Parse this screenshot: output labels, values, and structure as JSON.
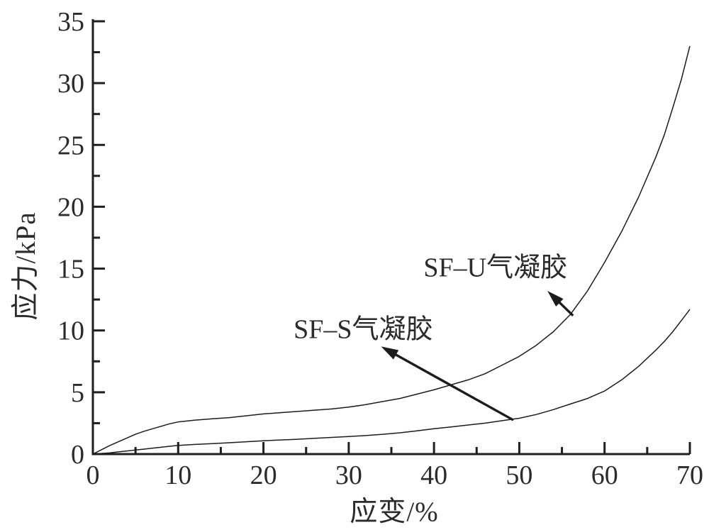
{
  "figure": {
    "background_color": "#ffffff",
    "ink_color": "#1f1f1f",
    "text_color": "#2b2b2b"
  },
  "chart_data": {
    "type": "line",
    "title": "",
    "xlabel": "应变/%",
    "ylabel": "应力/kPa",
    "xlim": [
      0,
      70
    ],
    "ylim": [
      0,
      35
    ],
    "x_major_ticks": [
      0,
      10,
      20,
      30,
      40,
      50,
      60,
      70
    ],
    "x_minor_ticks": [
      5,
      15,
      25,
      35,
      45,
      55,
      65
    ],
    "y_major_ticks": [
      0,
      5,
      10,
      15,
      20,
      25,
      30,
      35
    ],
    "y_minor_ticks": [
      2.5,
      7.5,
      12.5,
      17.5,
      22.5,
      27.5,
      32.5
    ],
    "grid": false,
    "legend_position": "none (inline arrow annotations)",
    "series": [
      {
        "name": "SF-U气凝胶",
        "x": [
          0,
          1,
          2,
          3,
          4,
          5,
          6,
          7,
          8,
          9,
          10,
          12,
          14,
          16,
          18,
          20,
          22,
          24,
          26,
          28,
          30,
          32,
          34,
          36,
          38,
          40,
          42,
          44,
          46,
          48,
          50,
          52,
          54,
          56,
          58,
          60,
          62,
          64,
          66,
          67,
          68,
          69,
          70
        ],
        "y": [
          0,
          0.35,
          0.7,
          1.0,
          1.3,
          1.6,
          1.85,
          2.05,
          2.25,
          2.45,
          2.6,
          2.75,
          2.85,
          2.95,
          3.1,
          3.25,
          3.35,
          3.45,
          3.55,
          3.65,
          3.8,
          4.0,
          4.25,
          4.5,
          4.85,
          5.2,
          5.6,
          6.0,
          6.5,
          7.2,
          7.9,
          8.8,
          9.9,
          11.3,
          13.2,
          15.5,
          18.0,
          20.8,
          24.0,
          25.8,
          28.0,
          30.3,
          33.0
        ]
      },
      {
        "name": "SF-S气凝胶",
        "x": [
          0,
          1,
          2,
          3,
          4,
          5,
          6,
          7,
          8,
          9,
          10,
          12,
          14,
          16,
          18,
          20,
          22,
          24,
          26,
          28,
          30,
          32,
          34,
          36,
          38,
          40,
          42,
          44,
          46,
          48,
          50,
          52,
          54,
          56,
          58,
          60,
          62,
          64,
          66,
          67,
          68,
          69,
          70
        ],
        "y": [
          0,
          0.05,
          0.1,
          0.18,
          0.25,
          0.33,
          0.4,
          0.48,
          0.55,
          0.63,
          0.7,
          0.78,
          0.85,
          0.92,
          1.0,
          1.08,
          1.14,
          1.2,
          1.28,
          1.35,
          1.42,
          1.5,
          1.6,
          1.72,
          1.88,
          2.05,
          2.2,
          2.35,
          2.5,
          2.7,
          2.9,
          3.2,
          3.6,
          4.05,
          4.5,
          5.1,
          6.0,
          7.1,
          8.4,
          9.1,
          9.9,
          10.8,
          11.7
        ]
      }
    ],
    "annotations": [
      {
        "label": "SF–U气凝胶",
        "label_at": {
          "x": 47.2,
          "y": 15.3
        },
        "arrow_tail": {
          "x": 56.3,
          "y": 11.2
        },
        "arrow_head": {
          "x": 53.3,
          "y": 13.2
        }
      },
      {
        "label": "SF–S气凝胶",
        "label_at": {
          "x": 31.7,
          "y": 10.33
        },
        "arrow_tail": {
          "x": 49.3,
          "y": 2.75
        },
        "arrow_head": {
          "x": 33.8,
          "y": 8.7
        }
      }
    ]
  }
}
